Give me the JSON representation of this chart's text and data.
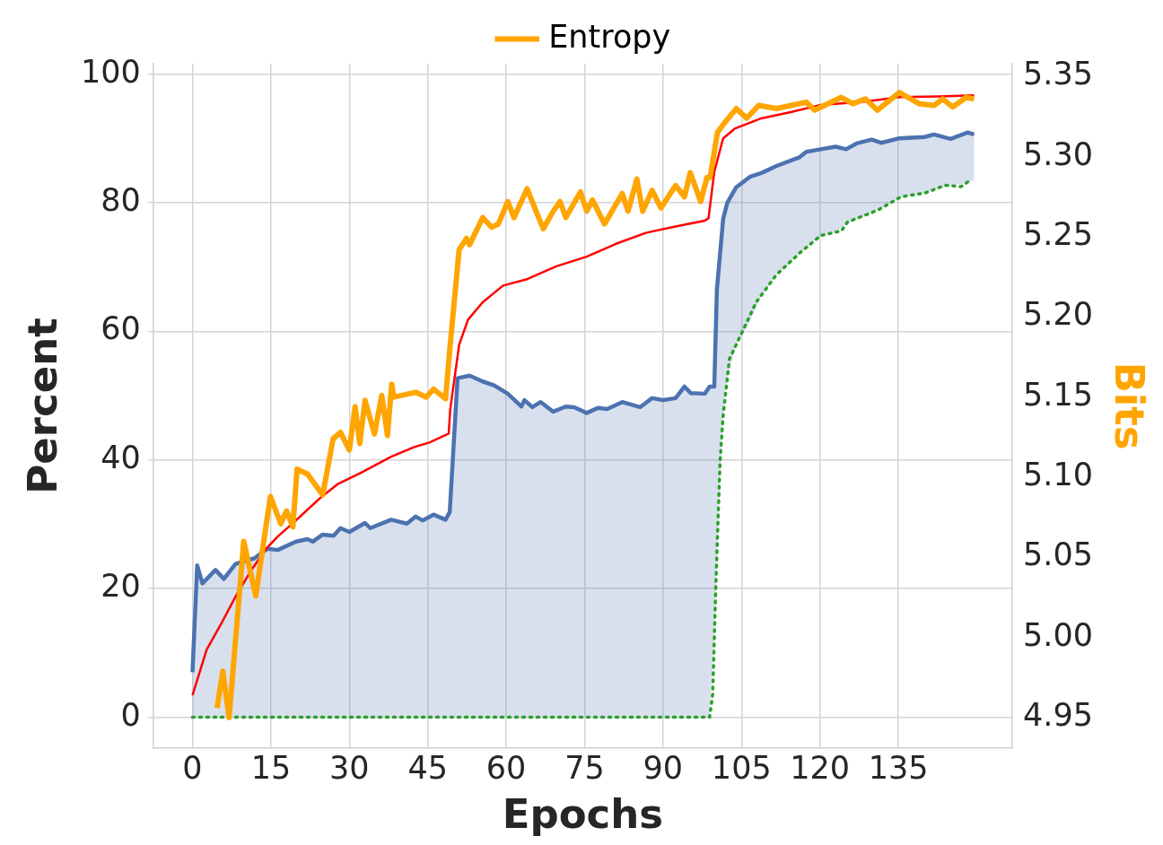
{
  "chart_data": {
    "type": "line",
    "xlabel": "Epochs",
    "ylabel": "Percent",
    "y2label": "Bits",
    "xlim": [
      -7.5,
      156.8
    ],
    "xticks": [
      0,
      15,
      30,
      45,
      60,
      75,
      90,
      105,
      120,
      135
    ],
    "ylim": [
      -4.8,
      101.6
    ],
    "yticks": [
      0,
      20,
      40,
      60,
      80,
      100
    ],
    "y2lim": [
      4.931,
      5.358
    ],
    "y2ticks": [
      4.95,
      {
        "value": 5,
        "label": "5.00"
      },
      5.05,
      {
        "value": 5.1,
        "label": "5.10"
      },
      5.15,
      {
        "value": 5.2,
        "label": "5.20"
      },
      5.25,
      {
        "value": 5.3,
        "label": "5.30"
      },
      5.35
    ],
    "grid": true,
    "legend": "top",
    "marker": "none",
    "series": [
      {
        "color": "#4c72b0",
        "lower": [
          0,
          0,
          0,
          0,
          0,
          0,
          0,
          0,
          0,
          0,
          0,
          0,
          0,
          0,
          0,
          0,
          0,
          0,
          0,
          0,
          0,
          0,
          0,
          0,
          0,
          0,
          0,
          0,
          0,
          0,
          0,
          0,
          0,
          0,
          0,
          0,
          0,
          0,
          0,
          0,
          0,
          0,
          0,
          0,
          0,
          0,
          0,
          0,
          0,
          0,
          12.1,
          25.4,
          47,
          52.8,
          57.9,
          61.5,
          65.6,
          68.8,
          71,
          72.1,
          73,
          74.9,
          75.4,
          76.7,
          77.4,
          78.4,
          79.1,
          80.8,
          81.5,
          82,
          82.6,
          83.1,
          83.5
        ],
        "upper": [
          7,
          23.6,
          20.8,
          22.9,
          21.5,
          23.8,
          24.2,
          24.7,
          26.2,
          26,
          27.3,
          27.7,
          27.3,
          28.4,
          28.2,
          29.4,
          28.8,
          30.2,
          29.4,
          30.7,
          30.1,
          31.2,
          30.6,
          31.5,
          30.7,
          31.9,
          52.7,
          53.1,
          52.2,
          51.6,
          50.3,
          48.3,
          49.3,
          48.2,
          49,
          47.5,
          48.3,
          48.2,
          47.3,
          48.1,
          47.9,
          49,
          48.2,
          49.6,
          49.3,
          49.6,
          51.4,
          50.4,
          50.3,
          51.4,
          51.4,
          66.5,
          77.5,
          80,
          82.4,
          84,
          84.6,
          85.7,
          86.6,
          87,
          87.9,
          88.3,
          88.7,
          88.3,
          89.2,
          89.8,
          89.3,
          90,
          90.2,
          90.6,
          89.9,
          90.9,
          90.6
        ],
        "x": [
          0,
          0.9,
          1.9,
          4.4,
          6,
          8.2,
          9.5,
          11.8,
          14.3,
          16.3,
          19.8,
          22,
          23,
          24.9,
          27,
          28.3,
          30,
          33,
          34,
          38,
          41,
          42.7,
          44,
          46.1,
          48.4,
          49.2,
          50.7,
          53,
          55.5,
          57.7,
          60.3,
          62.9,
          63.5,
          65,
          66.6,
          69,
          71.4,
          73,
          75.4,
          77.6,
          79.3,
          82.2,
          85.6,
          87.9,
          90,
          92.4,
          94.1,
          95.3,
          98,
          98.9,
          99.8,
          100.3,
          101.5,
          102.3,
          104,
          106.6,
          108.8,
          111.7,
          114.6,
          116,
          117.4,
          120.2,
          123,
          125,
          127,
          129.9,
          131.7,
          135.2,
          140,
          141.8,
          145,
          148.3,
          149.5
        ],
        "values": [
          7,
          23.6,
          20.8,
          22.9,
          21.5,
          23.8,
          24.2,
          24.7,
          26.2,
          26,
          27.3,
          27.7,
          27.3,
          28.4,
          28.2,
          29.4,
          28.8,
          30.2,
          29.4,
          30.7,
          30.1,
          31.2,
          30.6,
          31.5,
          30.7,
          31.9,
          52.7,
          53.1,
          52.2,
          51.6,
          50.3,
          48.3,
          49.3,
          48.2,
          49,
          47.5,
          48.3,
          48.2,
          47.3,
          48.1,
          47.9,
          49,
          48.2,
          49.6,
          49.3,
          49.6,
          51.4,
          50.4,
          50.3,
          51.4,
          51.4,
          66.5,
          77.5,
          80,
          82.4,
          84,
          84.6,
          85.7,
          86.6,
          87,
          87.9,
          88.3,
          88.7,
          88.3,
          89.2,
          89.8,
          89.3,
          90,
          90.2,
          90.6,
          89.9,
          90.9,
          90.6
        ]
      },
      {
        "color": "#2ca02c",
        "line_style": "dotted",
        "x": [
          0,
          98.9,
          99.5,
          100.1,
          100.9,
          101.5,
          102.7,
          105.2,
          107.8,
          111.7,
          116.3,
          120.2,
          124.1,
          125.3,
          131,
          135.5,
          140.1,
          144,
          147,
          148.8
        ],
        "values": [
          0,
          0,
          3.6,
          20.6,
          39.7,
          47,
          55.7,
          60,
          64.5,
          68.8,
          72.3,
          74.9,
          75.6,
          77,
          78.8,
          80.9,
          81.5,
          82.7,
          82.5,
          83.5
        ]
      },
      {
        "color": "#ff0000",
        "x": [
          0,
          2.7,
          5.6,
          8.4,
          11.2,
          14.1,
          16.3,
          19.8,
          24.3,
          27.7,
          32.2,
          38,
          42.4,
          45.3,
          49,
          49.3,
          51,
          52.7,
          55.5,
          59.4,
          64,
          69.6,
          75.4,
          81,
          86.7,
          92.4,
          98,
          98.7,
          99.8,
          101.5,
          103.7,
          108.8,
          114.6,
          120.2,
          128.7,
          135.2,
          142.9,
          149.5
        ],
        "values": [
          3.4,
          10.5,
          14.7,
          19,
          22.8,
          26.2,
          28.1,
          30.6,
          34,
          36.2,
          38,
          40.5,
          42,
          42.7,
          44.1,
          47.9,
          57.9,
          61.8,
          64.5,
          67.1,
          68.1,
          70.1,
          71.6,
          73.6,
          75.3,
          76.3,
          77.2,
          77.6,
          84.8,
          90,
          91.5,
          93.1,
          94.1,
          95.2,
          95.7,
          96.4,
          96.5,
          96.7
        ]
      },
      {
        "name": "Entropy",
        "axis": "y2",
        "color": "#ffa500",
        "x": [
          4.7,
          5.8,
          7,
          9.8,
          12.1,
          14.9,
          16.9,
          18,
          19.2,
          20,
          22,
          24.9,
          26.9,
          28.3,
          30,
          31.1,
          32,
          33,
          34.8,
          36.2,
          37.3,
          38.1,
          38.5,
          42.7,
          44.7,
          46.1,
          48.4,
          49.3,
          51,
          52.4,
          53,
          55.5,
          57.2,
          58.5,
          60.3,
          61.5,
          64,
          65.7,
          67.1,
          69,
          70.3,
          71.4,
          74.2,
          75.4,
          76.5,
          78.8,
          82.2,
          83.3,
          85,
          86.1,
          87.9,
          89.6,
          92.4,
          94.1,
          95.2,
          97.2,
          98.4,
          99,
          100.4,
          101.5,
          104,
          106,
          108.3,
          111.7,
          117.4,
          119,
          124.1,
          126.3,
          128.7,
          131,
          135.2,
          139,
          141.8,
          143.5,
          145.4,
          148,
          149.5
        ],
        "values": [
          4.956,
          4.979,
          4.95,
          5.06,
          5.026,
          5.088,
          5.071,
          5.079,
          5.069,
          5.105,
          5.102,
          5.089,
          5.124,
          5.128,
          5.117,
          5.144,
          5.121,
          5.148,
          5.127,
          5.151,
          5.126,
          5.158,
          5.15,
          5.153,
          5.15,
          5.155,
          5.149,
          5.183,
          5.242,
          5.249,
          5.245,
          5.262,
          5.256,
          5.258,
          5.272,
          5.262,
          5.28,
          5.266,
          5.255,
          5.266,
          5.272,
          5.262,
          5.278,
          5.266,
          5.273,
          5.258,
          5.277,
          5.266,
          5.286,
          5.266,
          5.279,
          5.268,
          5.282,
          5.275,
          5.29,
          5.272,
          5.287,
          5.287,
          5.315,
          5.32,
          5.33,
          5.324,
          5.332,
          5.33,
          5.334,
          5.329,
          5.337,
          5.333,
          5.336,
          5.329,
          5.34,
          5.333,
          5.332,
          5.336,
          5.331,
          5.337,
          5.336
        ]
      }
    ]
  }
}
